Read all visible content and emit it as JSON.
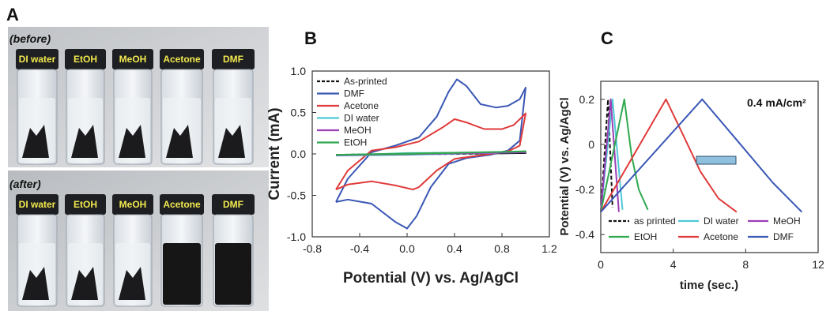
{
  "panels": {
    "a": "A",
    "b": "B",
    "c": "C"
  },
  "photo": {
    "before_label": "(before)",
    "after_label": "(after)",
    "vials": [
      "DI water",
      "EtOH",
      "MeOH",
      "Acetone",
      "DMF"
    ]
  },
  "chart_data": [
    {
      "type": "line",
      "panel": "B",
      "xlabel": "Potential (V) vs. Ag/AgCl",
      "ylabel": "Current (mA)",
      "xlim": [
        -0.8,
        1.2
      ],
      "ylim": [
        -1.0,
        1.0
      ],
      "xticks": [
        "-0.8",
        "-0.4",
        "0.0",
        "0.4",
        "0.8",
        "1.2"
      ],
      "yticks": [
        "1.0",
        "0.5",
        "0.0",
        "-0.5",
        "-1.0"
      ],
      "legend_position": "top-left",
      "series": [
        {
          "name": "As-printed",
          "color": "#111111",
          "dash": true,
          "points": [
            [
              -0.6,
              -0.01
            ],
            [
              0.0,
              -0.005
            ],
            [
              0.5,
              0.0
            ],
            [
              1.0,
              0.01
            ],
            [
              0.6,
              0.005
            ],
            [
              0.0,
              0.0
            ],
            [
              -0.6,
              -0.01
            ]
          ]
        },
        {
          "name": "DMF",
          "color": "#3a57b5",
          "points": [
            [
              -0.6,
              -0.58
            ],
            [
              -0.5,
              -0.3
            ],
            [
              -0.3,
              0.02
            ],
            [
              -0.1,
              0.1
            ],
            [
              0.1,
              0.2
            ],
            [
              0.25,
              0.45
            ],
            [
              0.35,
              0.75
            ],
            [
              0.42,
              0.9
            ],
            [
              0.5,
              0.82
            ],
            [
              0.62,
              0.6
            ],
            [
              0.75,
              0.56
            ],
            [
              0.85,
              0.58
            ],
            [
              0.95,
              0.66
            ],
            [
              1.0,
              0.8
            ],
            [
              0.95,
              0.16
            ],
            [
              0.85,
              0.04
            ],
            [
              0.7,
              -0.01
            ],
            [
              0.5,
              -0.05
            ],
            [
              0.35,
              -0.12
            ],
            [
              0.2,
              -0.4
            ],
            [
              0.08,
              -0.75
            ],
            [
              0.0,
              -0.9
            ],
            [
              -0.1,
              -0.82
            ],
            [
              -0.3,
              -0.6
            ],
            [
              -0.5,
              -0.55
            ],
            [
              -0.6,
              -0.58
            ]
          ]
        },
        {
          "name": "Acetone",
          "color": "#e03a3a",
          "points": [
            [
              -0.6,
              -0.43
            ],
            [
              -0.5,
              -0.2
            ],
            [
              -0.3,
              0.04
            ],
            [
              -0.1,
              0.08
            ],
            [
              0.1,
              0.15
            ],
            [
              0.3,
              0.32
            ],
            [
              0.4,
              0.42
            ],
            [
              0.5,
              0.38
            ],
            [
              0.65,
              0.3
            ],
            [
              0.8,
              0.3
            ],
            [
              0.9,
              0.35
            ],
            [
              1.0,
              0.49
            ],
            [
              0.95,
              0.1
            ],
            [
              0.85,
              0.03
            ],
            [
              0.6,
              -0.02
            ],
            [
              0.4,
              -0.06
            ],
            [
              0.25,
              -0.2
            ],
            [
              0.1,
              -0.4
            ],
            [
              0.05,
              -0.43
            ],
            [
              -0.1,
              -0.38
            ],
            [
              -0.3,
              -0.33
            ],
            [
              -0.5,
              -0.37
            ],
            [
              -0.6,
              -0.43
            ]
          ]
        },
        {
          "name": "DI water",
          "color": "#4fc9d8",
          "points": [
            [
              -0.6,
              -0.02
            ],
            [
              0.0,
              -0.01
            ],
            [
              1.0,
              0.02
            ],
            [
              0.0,
              0.01
            ],
            [
              -0.6,
              -0.02
            ]
          ]
        },
        {
          "name": "MeOH",
          "color": "#9b3fb5",
          "points": [
            [
              -0.6,
              -0.015
            ],
            [
              0.0,
              -0.005
            ],
            [
              1.0,
              0.02
            ],
            [
              0.0,
              0.0
            ],
            [
              -0.6,
              -0.015
            ]
          ]
        },
        {
          "name": "EtOH",
          "color": "#2fa84f",
          "points": [
            [
              -0.6,
              -0.01
            ],
            [
              0.0,
              0.0
            ],
            [
              1.0,
              0.03
            ],
            [
              0.0,
              0.005
            ],
            [
              -0.6,
              -0.01
            ]
          ]
        }
      ]
    },
    {
      "type": "line",
      "panel": "C",
      "xlabel": "time (sec.)",
      "ylabel": "Potential (V) vs. Ag/AgCl",
      "xlim": [
        0,
        12
      ],
      "ylim": [
        -0.48,
        0.28
      ],
      "xticks": [
        "0",
        "4",
        "8",
        "12"
      ],
      "yticks": [
        "0.2",
        "0",
        "-0.2",
        "-0.4"
      ],
      "annotation": "0.4 mA/cm²",
      "legend_position": "bottom",
      "series": [
        {
          "name": "as printed",
          "color": "#111111",
          "dash": true,
          "points": [
            [
              0,
              -0.3
            ],
            [
              0.4,
              0.2
            ],
            [
              0.65,
              -0.28
            ]
          ]
        },
        {
          "name": "DI water",
          "color": "#4fc9d8",
          "points": [
            [
              0,
              -0.3
            ],
            [
              0.65,
              0.2
            ],
            [
              1.2,
              -0.29
            ]
          ]
        },
        {
          "name": "MeOH",
          "color": "#9b3fb5",
          "points": [
            [
              0,
              -0.3
            ],
            [
              0.55,
              0.2
            ],
            [
              1.0,
              -0.3
            ]
          ]
        },
        {
          "name": "EtOH",
          "color": "#2fa84f",
          "points": [
            [
              0,
              -0.3
            ],
            [
              1.3,
              0.2
            ],
            [
              1.7,
              -0.05
            ],
            [
              2.1,
              -0.2
            ],
            [
              2.6,
              -0.29
            ]
          ]
        },
        {
          "name": "Acetone",
          "color": "#e03a3a",
          "points": [
            [
              0,
              -0.3
            ],
            [
              3.6,
              0.2
            ],
            [
              4.5,
              0.05
            ],
            [
              5.5,
              -0.12
            ],
            [
              6.5,
              -0.24
            ],
            [
              7.5,
              -0.3
            ]
          ]
        },
        {
          "name": "DMF",
          "color": "#3a57b5",
          "points": [
            [
              0,
              -0.3
            ],
            [
              5.6,
              0.2
            ],
            [
              7.5,
              0.02
            ],
            [
              9.5,
              -0.17
            ],
            [
              11.1,
              -0.3
            ]
          ]
        }
      ]
    }
  ]
}
